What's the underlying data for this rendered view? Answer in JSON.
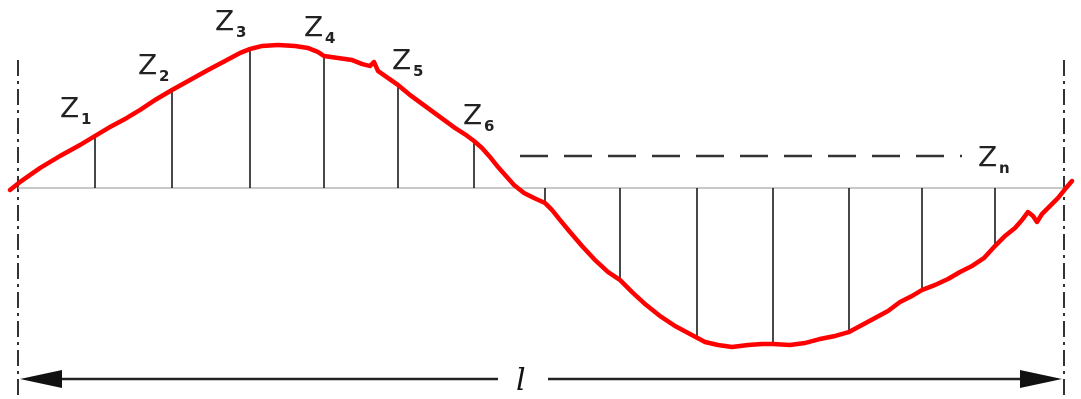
{
  "colors": {
    "profile": "#ff0000",
    "ordinates": "#1a1a1a",
    "mean_line": "#b5b5b5",
    "axis_lines": "#333333"
  },
  "labels": [
    {
      "id": "z1",
      "base": "Z",
      "sub": "1"
    },
    {
      "id": "z2",
      "base": "Z",
      "sub": "2"
    },
    {
      "id": "z3",
      "base": "Z",
      "sub": "3"
    },
    {
      "id": "z4",
      "base": "Z",
      "sub": "4"
    },
    {
      "id": "z5",
      "base": "Z",
      "sub": "5"
    },
    {
      "id": "z6",
      "base": "Z",
      "sub": "6"
    },
    {
      "id": "zn",
      "base": "Z",
      "sub": "n"
    }
  ],
  "length_label": "l"
}
